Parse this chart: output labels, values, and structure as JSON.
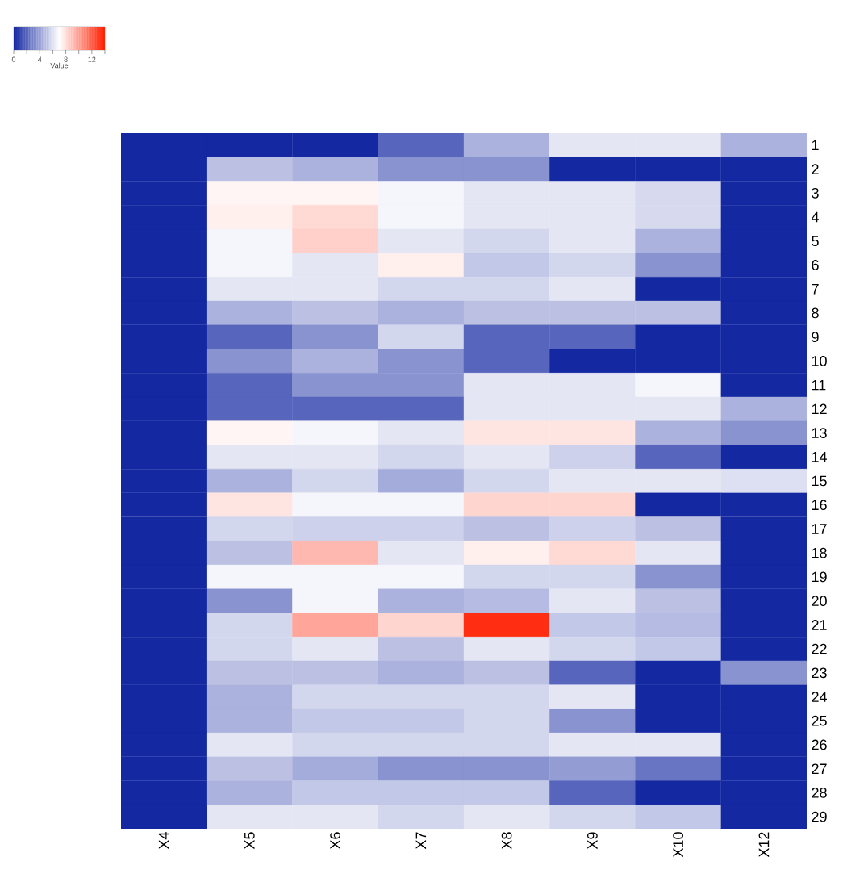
{
  "chart_data": {
    "type": "heatmap",
    "clabel": "Value",
    "clim": [
      0,
      14
    ],
    "cticks": [
      0,
      {
        "value": 2,
        "label": null
      },
      4,
      {
        "value": 6,
        "label": null
      },
      8,
      {
        "value": 10,
        "label": null
      },
      12,
      {
        "value": 14,
        "label": null
      }
    ],
    "categories": [
      "X4",
      "X5",
      "X6",
      "X7",
      "X8",
      "X9",
      "X10",
      "X12"
    ],
    "y_categories": [
      "1",
      "2",
      "3",
      "4",
      "5",
      "6",
      "7",
      "8",
      "9",
      "10",
      "11",
      "12",
      "13",
      "14",
      "15",
      "16",
      "17",
      "18",
      "19",
      "20",
      "21",
      "22",
      "23",
      "24",
      "25",
      "26",
      "27",
      "28",
      "29"
    ],
    "cells": [
      [
        0,
        0,
        0,
        2,
        4.5,
        6.2,
        6.2,
        4.5
      ],
      [
        0,
        5,
        4.5,
        3.5,
        3.5,
        0,
        0,
        0
      ],
      [
        0,
        7.3,
        7.3,
        6.7,
        6.2,
        6.2,
        5.8,
        0
      ],
      [
        0,
        7.5,
        8.2,
        6.7,
        6.2,
        6.2,
        5.8,
        0
      ],
      [
        0,
        6.7,
        8.5,
        6.2,
        5.7,
        6.2,
        4.5,
        0
      ],
      [
        0,
        6.7,
        6.2,
        7.5,
        5.2,
        5.7,
        3.5,
        0
      ],
      [
        0,
        6.2,
        6.2,
        5.7,
        5.7,
        6.2,
        0,
        0
      ],
      [
        0,
        4.5,
        5,
        4.5,
        5,
        5,
        5,
        0
      ],
      [
        0,
        2,
        3.5,
        5.7,
        2,
        2,
        0,
        0
      ],
      [
        0,
        3.5,
        4.5,
        3.5,
        2,
        0,
        0,
        0
      ],
      [
        0,
        2,
        3.5,
        3.5,
        6.2,
        6.2,
        6.7,
        0
      ],
      [
        0,
        2,
        2,
        2,
        6.2,
        6.2,
        6.2,
        4.5
      ],
      [
        0,
        7.3,
        6.7,
        6.2,
        7.8,
        7.8,
        4.5,
        3.5
      ],
      [
        0,
        6.2,
        6.2,
        5.7,
        6.2,
        5.5,
        2,
        0
      ],
      [
        0,
        4.5,
        5.7,
        4.3,
        5.7,
        6.2,
        6.2,
        6
      ],
      [
        0,
        7.8,
        6.7,
        6.7,
        8.3,
        8.3,
        0,
        0
      ],
      [
        0,
        5.7,
        5.5,
        5.5,
        5,
        5.5,
        5,
        0
      ],
      [
        0,
        5,
        9.2,
        6.2,
        7.5,
        8.2,
        6.2,
        0
      ],
      [
        0,
        6.7,
        6.7,
        6.7,
        5.7,
        5.7,
        3.5,
        0
      ],
      [
        0,
        3.5,
        6.7,
        4.5,
        4.8,
        6.2,
        5,
        0
      ],
      [
        0,
        5.7,
        9.8,
        8.3,
        13.5,
        5.2,
        4.8,
        0
      ],
      [
        0,
        5.7,
        6.2,
        5,
        6.2,
        5.7,
        5.2,
        0
      ],
      [
        0,
        5,
        5,
        4.5,
        5,
        2,
        0,
        3.5
      ],
      [
        0,
        4.5,
        5.7,
        5.7,
        5.7,
        6.2,
        0,
        0
      ],
      [
        0,
        4.5,
        5.2,
        5.2,
        5.7,
        3.5,
        0,
        0
      ],
      [
        0,
        6.2,
        5.7,
        5.7,
        5.7,
        6.2,
        6.2,
        0
      ],
      [
        0,
        5,
        4.3,
        3.5,
        3.5,
        3.8,
        2.5,
        0
      ],
      [
        0,
        4.5,
        5.2,
        5.2,
        5.2,
        2,
        0,
        0
      ],
      [
        0,
        6.2,
        6.2,
        5.7,
        6.2,
        5.7,
        5.2,
        0
      ]
    ]
  }
}
